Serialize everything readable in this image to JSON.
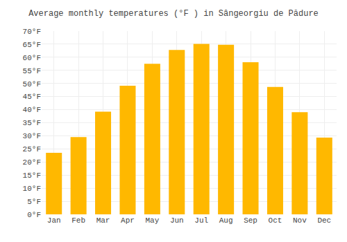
{
  "chart_data": {
    "type": "bar",
    "title": "Average monthly temperatures (°F ) in Sângeorgiu de Pădure",
    "categories": [
      "Jan",
      "Feb",
      "Mar",
      "Apr",
      "May",
      "Jun",
      "Jul",
      "Aug",
      "Sep",
      "Oct",
      "Nov",
      "Dec"
    ],
    "values": [
      23.5,
      29.5,
      39.2,
      49.1,
      57.5,
      62.8,
      65.1,
      64.8,
      58.1,
      48.7,
      39.0,
      29.3
    ],
    "color": "#FFB800",
    "ylim": [
      0,
      70
    ],
    "yticks": [
      {
        "value": 0,
        "label": "0°F"
      },
      {
        "value": 5,
        "label": "5°F"
      },
      {
        "value": 10,
        "label": "10°F"
      },
      {
        "value": 15,
        "label": "15°F"
      },
      {
        "value": 20,
        "label": "20°F"
      },
      {
        "value": 25,
        "label": "25°F"
      },
      {
        "value": 30,
        "label": "30°F"
      },
      {
        "value": 35,
        "label": "35°F"
      },
      {
        "value": 40,
        "label": "40°F"
      },
      {
        "value": 45,
        "label": "45°F"
      },
      {
        "value": 50,
        "label": "50°F"
      },
      {
        "value": 55,
        "label": "55°F"
      },
      {
        "value": 60,
        "label": "60°F"
      },
      {
        "value": 65,
        "label": "65°F"
      },
      {
        "value": 70,
        "label": "70°F"
      }
    ],
    "grid": true
  }
}
